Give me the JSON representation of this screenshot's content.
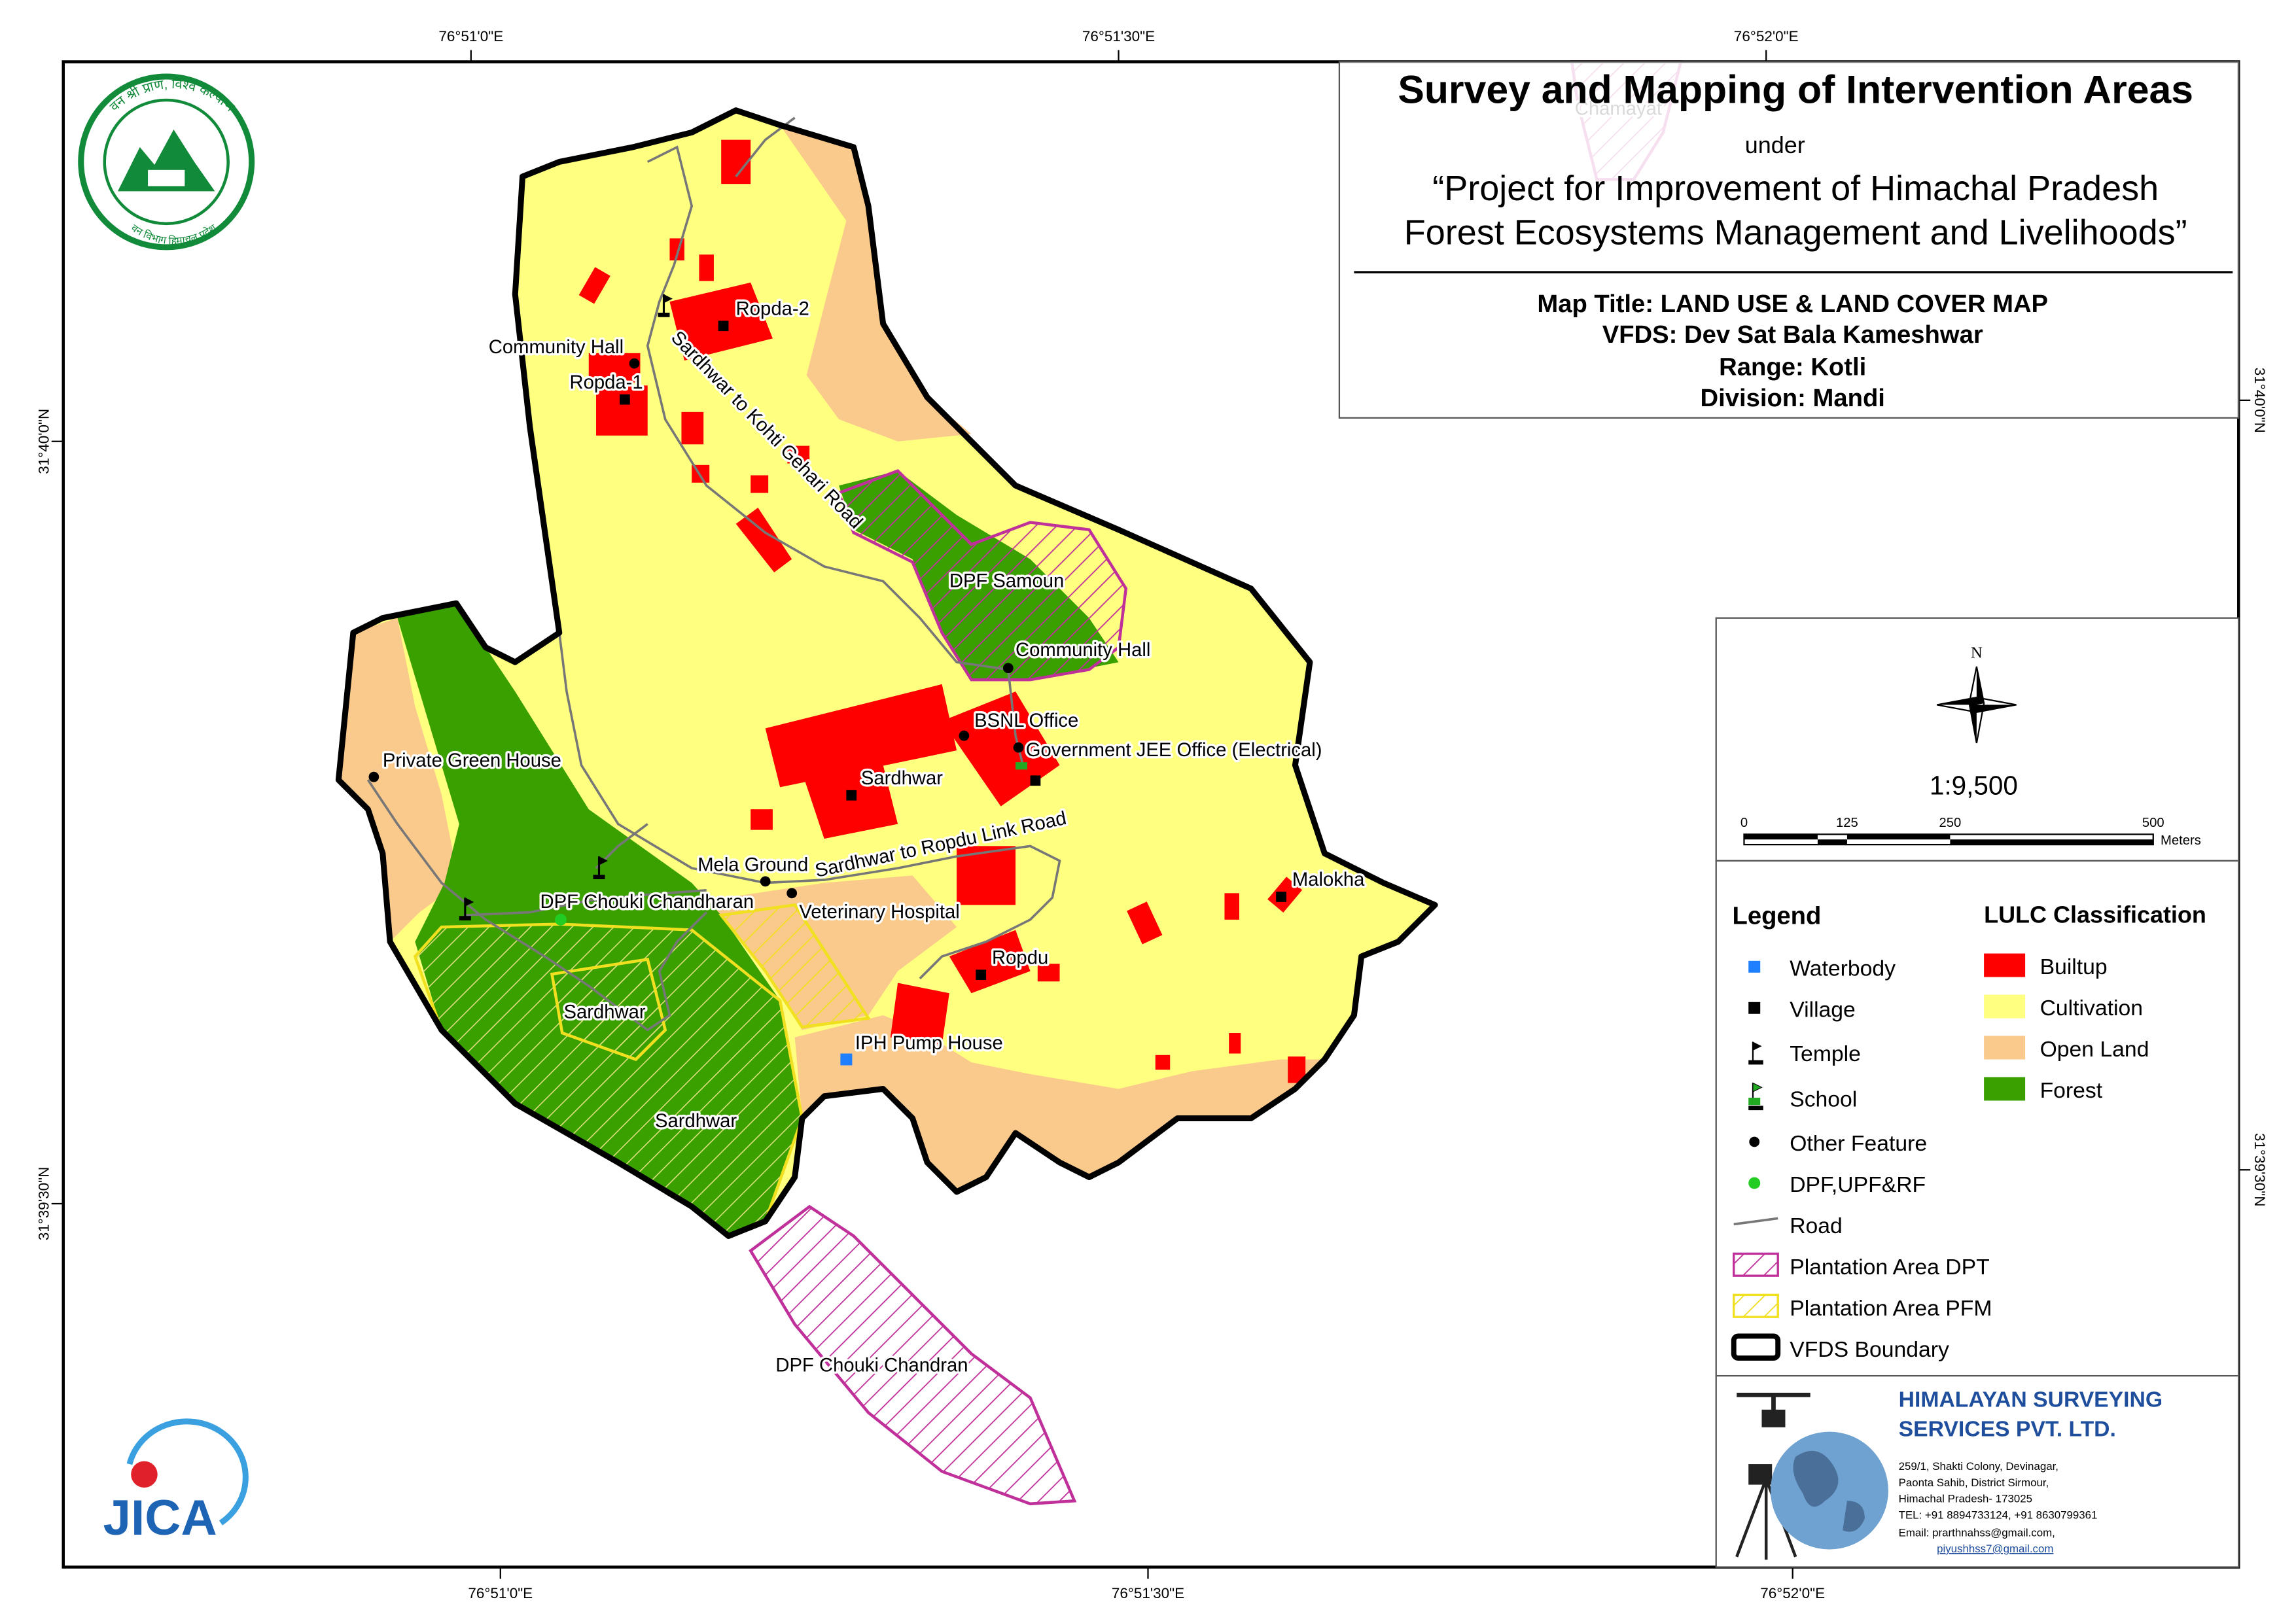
{
  "header": {
    "title": "Survey and Mapping of Intervention Areas",
    "under": "under",
    "project": [
      "“Project for Improvement of Himachal Pradesh",
      "Forest Ecosystems Management and Livelihoods”"
    ]
  },
  "map_info": {
    "map_title": "Map Title: LAND USE & LAND COVER MAP",
    "vfds": "VFDS: Dev Sat Bala Kameshwar",
    "range": "Range: Kotli",
    "division": "Division: Mandi"
  },
  "grid_labels": {
    "top": [
      "76°51'0\"E",
      "76°51'30\"E",
      "76°52'0\"E"
    ],
    "bottom": [
      "76°51'0\"E",
      "76°51'30\"E",
      "76°52'0\"E"
    ],
    "left": [
      "31°40'0\"N",
      "31°39'30\"N"
    ],
    "right": [
      "31°40'0\"N",
      "31°39'30\"N"
    ]
  },
  "north": "N",
  "scale": {
    "ratio": "1:9,500",
    "ticks": [
      0,
      125,
      250,
      500
    ],
    "unit": "Meters"
  },
  "legend": {
    "title": "Legend",
    "items": [
      "Waterbody",
      "Village",
      "Temple",
      "School",
      "Other Feature",
      "DPF,UPF&RF",
      "Road",
      "Plantation Area DPT",
      "Plantation Area PFM",
      "VFDS Boundary"
    ]
  },
  "lulc": {
    "title": "LULC Classification",
    "items": [
      "Builtup",
      "Cultivation",
      "Open Land",
      "Forest"
    ]
  },
  "places": [
    "Chamayat",
    "Ropda-2",
    "Community Hall",
    "Ropda-1",
    "DPF Samoun",
    "Community Hall",
    "BSNL Office",
    "Government JEE Office (Electrical)",
    "Private Green House",
    "Sardhwar",
    "Mela Ground",
    "Veterinary Hospital",
    "DPF Chouki Chandharan",
    "Malokha",
    "Ropdu",
    "Sardhwar",
    "IPH Pump House",
    "Sardhwar",
    "DPF Chouki Chandran"
  ],
  "roads": [
    "Sardhwar to Kohti Gehari Road",
    "Sardhwar to Ropdu Link Road"
  ],
  "company": {
    "name": [
      "HIMALAYAN SURVEYING",
      "SERVICES PVT. LTD."
    ],
    "address": [
      "259/1, Shakti Colony, Devinagar,",
      "Paonta Sahib, District Sirmour,",
      "Himachal Pradesh- 173025",
      "TEL: +91 8894733124, +91 8630799361",
      "Email: prarthnahss@gmail.com,",
      "piyushhss7@gmail.com"
    ]
  },
  "logos": {
    "forest_top": "वन श्री प्राण, विश्व कल्याण",
    "forest_bottom": "वन विभाग हिमाचल प्रदेश",
    "jica": "JICA"
  }
}
